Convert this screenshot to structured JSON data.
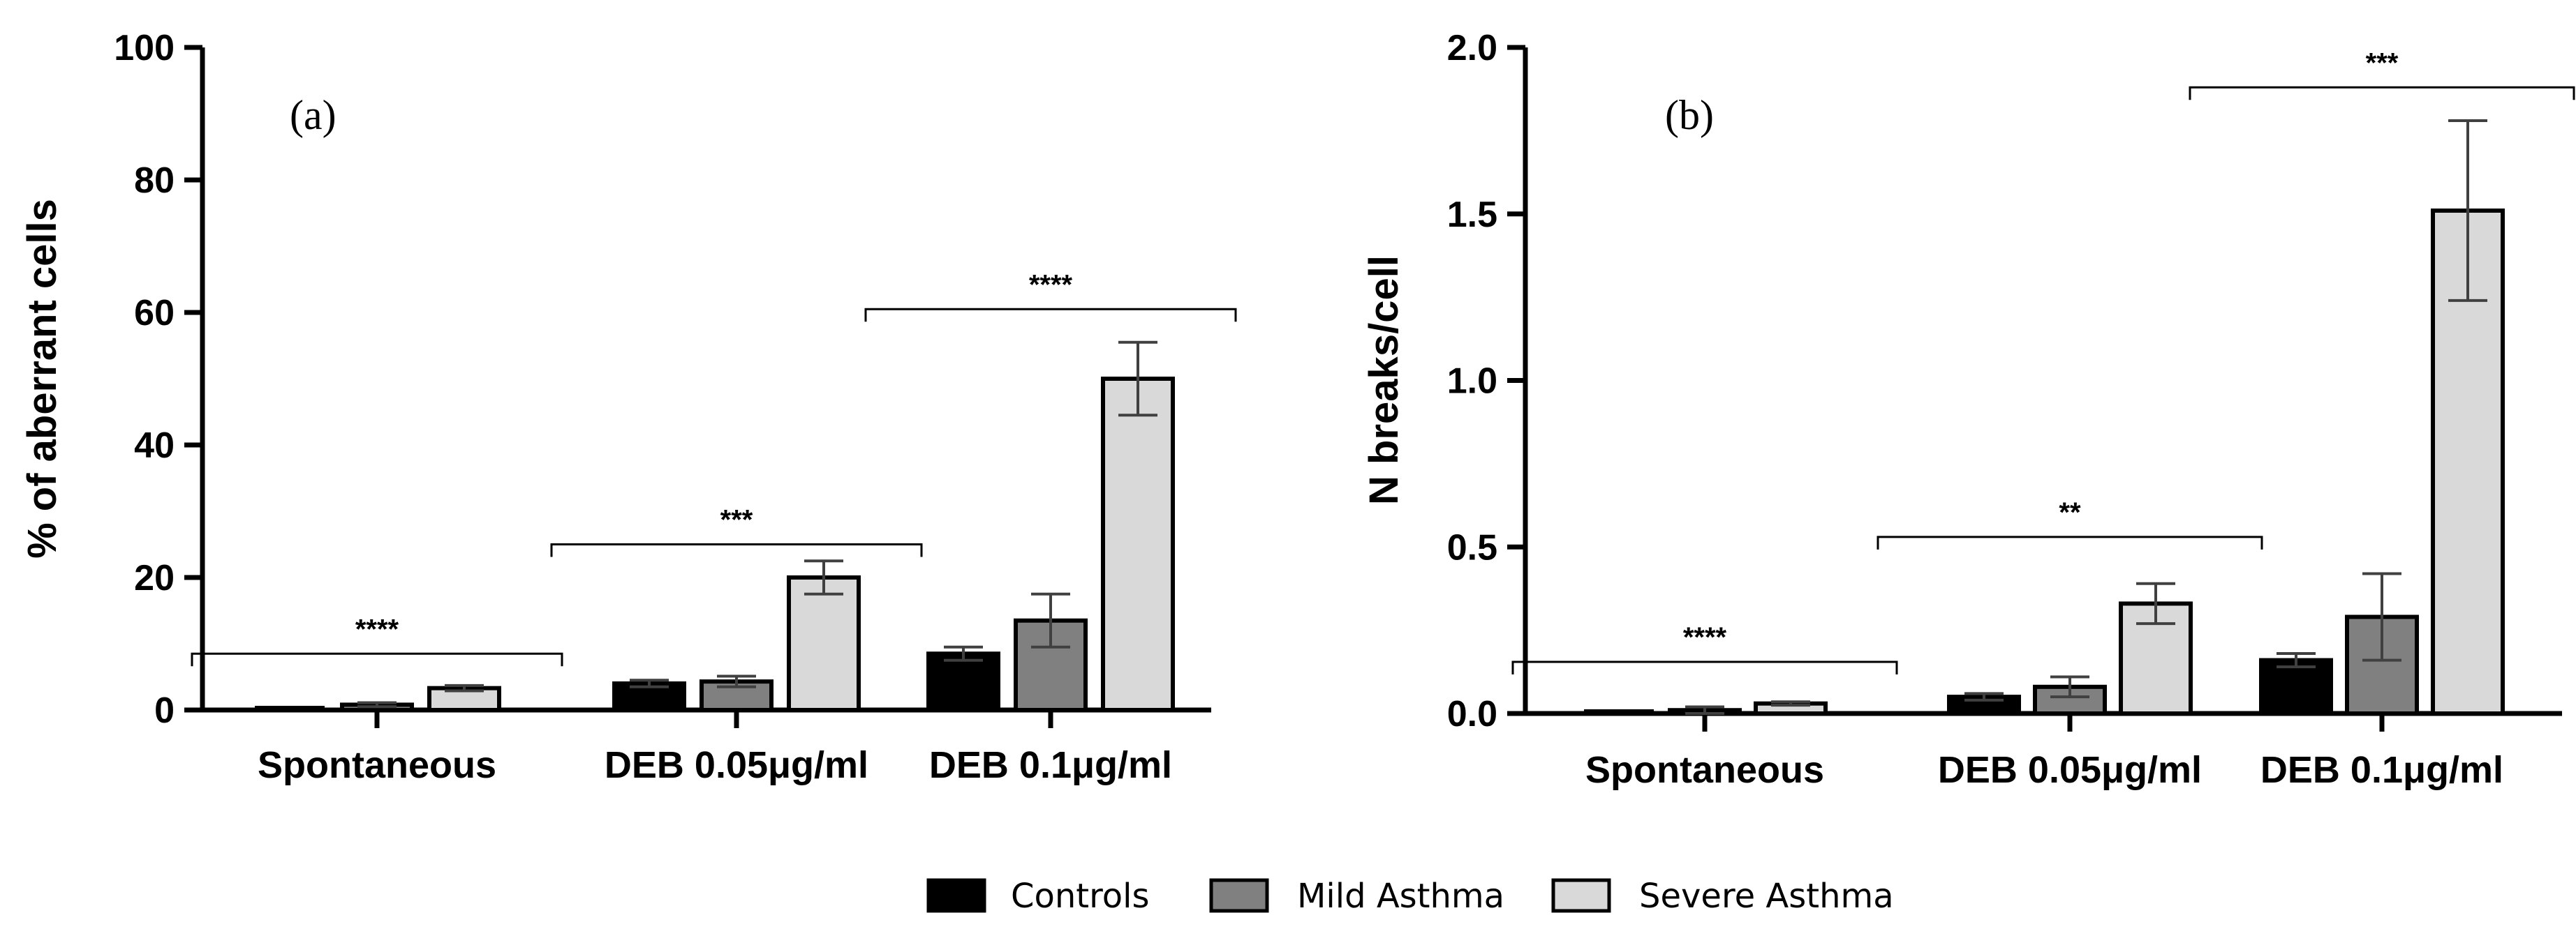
{
  "colors": {
    "controls": "#000000",
    "mild_asthma": "#808080",
    "severe_asthma": "#d9d9d9",
    "axis": "#000000"
  },
  "legend": [
    {
      "label": "Controls",
      "color": "#000000"
    },
    {
      "label": "Mild Asthma",
      "color": "#808080"
    },
    {
      "label": "Severe Asthma",
      "color": "#d9d9d9"
    }
  ],
  "chart_data": [
    {
      "type": "bar",
      "panel_label": "(a)",
      "ylabel": "% of aberrant cells",
      "ylim": [
        0,
        100
      ],
      "yticks": [
        "0",
        "20",
        "40",
        "60",
        "80",
        "100"
      ],
      "ytick_values": [
        0,
        20,
        40,
        60,
        80,
        100
      ],
      "categories": [
        "Spontaneous",
        "DEB 0.05μg/ml",
        "DEB 0.1μg/ml"
      ],
      "series": [
        {
          "name": "Controls",
          "values": [
            0,
            4,
            8.5
          ],
          "errors": [
            0,
            0.5,
            1
          ]
        },
        {
          "name": "Mild Asthma",
          "values": [
            0.8,
            4.3,
            13.5
          ],
          "errors": [
            0.3,
            0.8,
            4
          ]
        },
        {
          "name": "Severe Asthma",
          "values": [
            3.3,
            20,
            50
          ],
          "errors": [
            0.4,
            2.5,
            5.5
          ]
        }
      ],
      "significance": [
        {
          "category": "Spontaneous",
          "label": "****",
          "y": 8.5
        },
        {
          "category": "DEB 0.05μg/ml",
          "label": "***",
          "y": 25
        },
        {
          "category": "DEB 0.1μg/ml",
          "label": "****",
          "y": 60.5
        }
      ]
    },
    {
      "type": "bar",
      "panel_label": "(b)",
      "ylabel": "N breaks/cell",
      "ylim": [
        0,
        2.0
      ],
      "yticks": [
        "0.0",
        "0.5",
        "1.0",
        "1.5",
        "2.0"
      ],
      "ytick_values": [
        0,
        0.5,
        1.0,
        1.5,
        2.0
      ],
      "categories": [
        "Spontaneous",
        "DEB 0.05μg/ml",
        "DEB 0.1μg/ml"
      ],
      "series": [
        {
          "name": "Controls",
          "values": [
            0,
            0.05,
            0.16
          ],
          "errors": [
            0,
            0.01,
            0.02
          ]
        },
        {
          "name": "Mild Asthma",
          "values": [
            0.01,
            0.08,
            0.29
          ],
          "errors": [
            0.01,
            0.03,
            0.13
          ]
        },
        {
          "name": "Severe Asthma",
          "values": [
            0.03,
            0.33,
            1.51
          ],
          "errors": [
            0.005,
            0.06,
            0.27
          ]
        }
      ],
      "significance": [
        {
          "category": "Spontaneous",
          "label": "****",
          "y": 0.155
        },
        {
          "category": "DEB 0.05μg/ml",
          "label": "**",
          "y": 0.53
        },
        {
          "category": "DEB 0.1μg/ml",
          "label": "***",
          "y": 1.88
        }
      ]
    }
  ]
}
